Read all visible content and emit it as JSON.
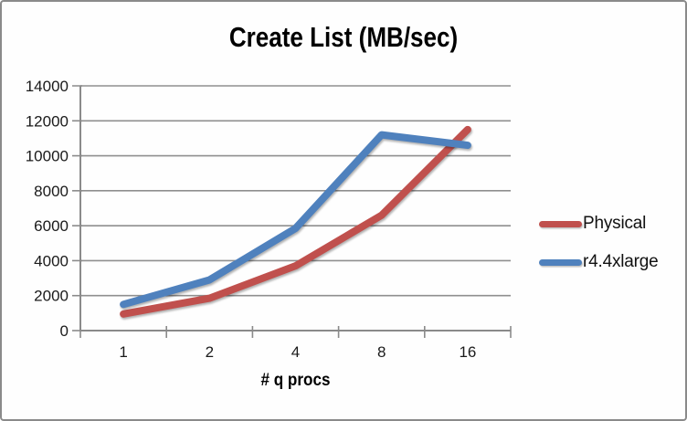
{
  "chart_data": {
    "type": "line",
    "title": "Create List (MB/sec)",
    "xlabel": "# q procs",
    "ylabel": "",
    "categories": [
      "1",
      "2",
      "4",
      "8",
      "16"
    ],
    "series": [
      {
        "name": "Physical",
        "color": "#C0504D",
        "values": [
          950,
          1850,
          3700,
          6600,
          11500
        ]
      },
      {
        "name": "r4.4xlarge",
        "color": "#4F81BD",
        "values": [
          1500,
          2900,
          5850,
          11200,
          10600
        ]
      }
    ],
    "ylim": [
      0,
      14000
    ],
    "y_tick_step": 2000,
    "y_ticks": [
      0,
      2000,
      4000,
      6000,
      8000,
      10000,
      12000,
      14000
    ],
    "grid": "horizontal-only",
    "legend_position": "right",
    "gridline_color": "#8f8f8f",
    "axis_color": "#8a8a8a",
    "text_color": "#1a1a1a"
  }
}
